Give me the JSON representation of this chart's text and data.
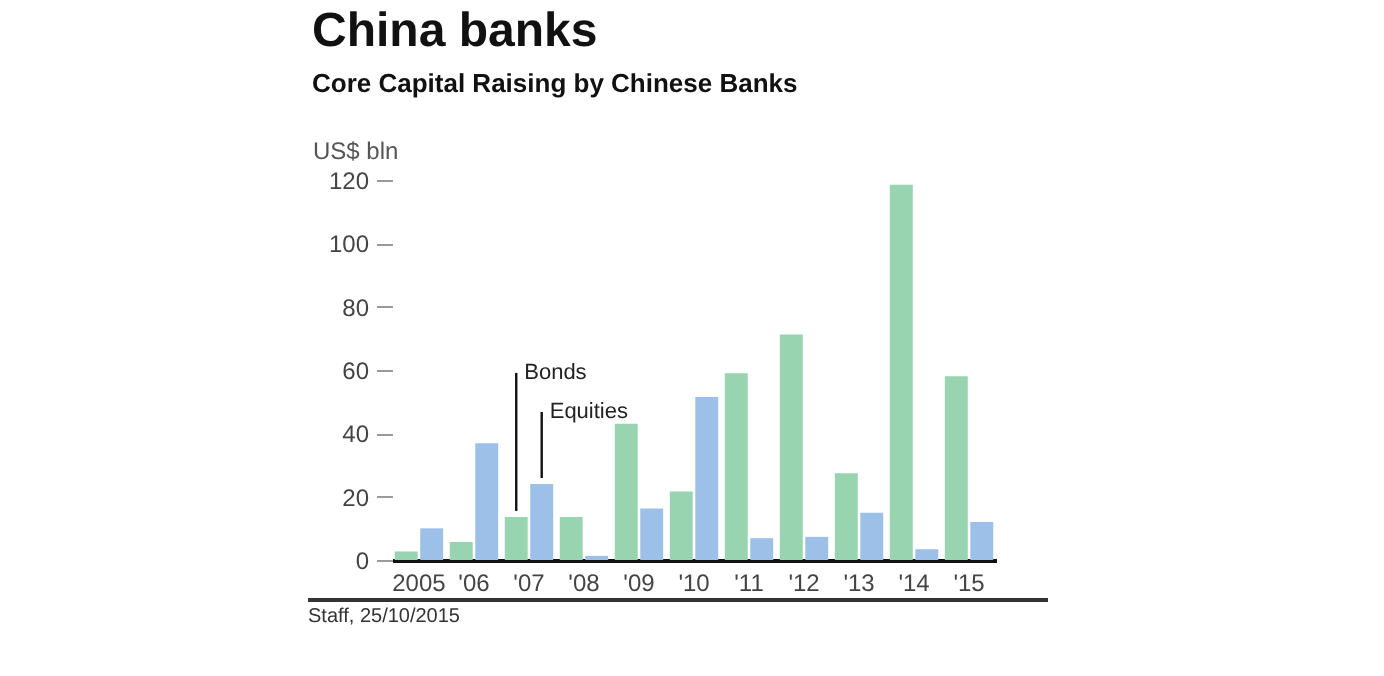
{
  "chart_data": {
    "type": "bar",
    "title": "China banks",
    "subtitle": "Core Capital Raising by Chinese Banks",
    "ylabel": "US$ bln",
    "categories": [
      "2005",
      "'06",
      "'07",
      "'08",
      "'09",
      "'10",
      "'11",
      "'12",
      "'13",
      "'14",
      "'15"
    ],
    "series": [
      {
        "name": "Bonds",
        "color": "#98d4b0",
        "values": [
          2.7,
          5.7,
          13.6,
          13.6,
          43,
          21.6,
          59,
          71.2,
          27.4,
          118.5,
          58
        ]
      },
      {
        "name": "Equities",
        "color": "#9cc0e8",
        "values": [
          10,
          36.9,
          24,
          1.3,
          16.3,
          51.5,
          6.9,
          7.3,
          14.9,
          3.4,
          12
        ]
      }
    ],
    "ylim": [
      0,
      120
    ],
    "yticks": [
      0,
      20,
      40,
      60,
      80,
      100,
      120
    ],
    "grid": false,
    "annotations": [
      "Staff, 25/10/2015"
    ]
  }
}
